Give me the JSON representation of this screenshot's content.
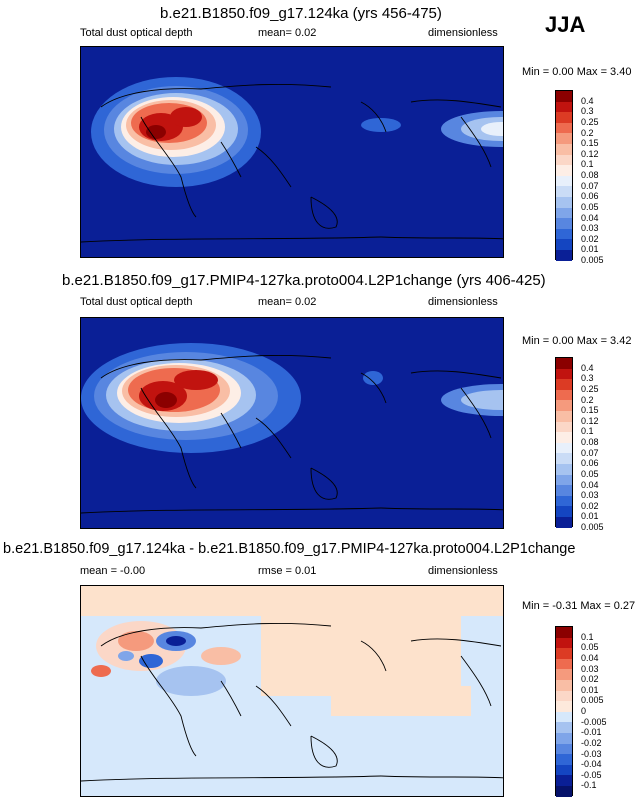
{
  "season": "JJA",
  "colors": {
    "ocean_dark": "#0a1f96",
    "diff_bg": "#d6e8fb",
    "diff_pos": "#fde2cc"
  },
  "panels": [
    {
      "title": "b.e21.B1850.f09_g17.124ka (yrs 456-475)",
      "left_label": "Total dust optical depth",
      "mid_label": "mean=  0.02",
      "right_label": "dimensionless",
      "minmax": "Min =  0.00 Max =  3.40"
    },
    {
      "title": "b.e21.B1850.f09_g17.PMIP4-127ka.proto004.L2P1change (yrs 406-425)",
      "left_label": "Total dust optical depth",
      "mid_label": "mean=  0.02",
      "right_label": "dimensionless",
      "minmax": "Min =  0.00 Max =  3.42"
    },
    {
      "title": "b.e21.B1850.f09_g17.124ka - b.e21.B1850.f09_g17.PMIP4-127ka.proto004.L2P1change",
      "left_label": "mean =  -0.00",
      "mid_label": "rmse =  0.01",
      "right_label": "dimensionless",
      "minmax": "Min = -0.31 Max =  0.27"
    }
  ],
  "chart_data": [
    {
      "type": "heatmap",
      "title": "b.e21.B1850.f09_g17.124ka (yrs 456-475)",
      "variable": "Total dust optical depth",
      "units": "dimensionless",
      "mean": 0.02,
      "min": 0.0,
      "max": 3.4,
      "colorbar_levels": [
        "0.4",
        "0.3",
        "0.25",
        "0.2",
        "0.15",
        "0.12",
        "0.1",
        "0.08",
        "0.07",
        "0.06",
        "0.05",
        "0.04",
        "0.03",
        "0.02",
        "0.01",
        "0.005"
      ],
      "colorbar_colors": [
        "#8b0000",
        "#c1130f",
        "#dc3b24",
        "#ee6b4f",
        "#f59a7d",
        "#f9bea5",
        "#fbd7c7",
        "#fdeee6",
        "#e8f0fb",
        "#cadcf6",
        "#a6c3f0",
        "#7fa5e9",
        "#5886e0",
        "#2f66d6",
        "#1445c1",
        "#0a1f96"
      ]
    },
    {
      "type": "heatmap",
      "title": "b.e21.B1850.f09_g17.PMIP4-127ka.proto004.L2P1change (yrs 406-425)",
      "variable": "Total dust optical depth",
      "units": "dimensionless",
      "mean": 0.02,
      "min": 0.0,
      "max": 3.42,
      "colorbar_levels": [
        "0.4",
        "0.3",
        "0.25",
        "0.2",
        "0.15",
        "0.12",
        "0.1",
        "0.08",
        "0.07",
        "0.06",
        "0.05",
        "0.04",
        "0.03",
        "0.02",
        "0.01",
        "0.005"
      ],
      "colorbar_colors": [
        "#8b0000",
        "#c1130f",
        "#dc3b24",
        "#ee6b4f",
        "#f59a7d",
        "#f9bea5",
        "#fbd7c7",
        "#fdeee6",
        "#e8f0fb",
        "#cadcf6",
        "#a6c3f0",
        "#7fa5e9",
        "#5886e0",
        "#2f66d6",
        "#1445c1",
        "#0a1f96"
      ]
    },
    {
      "type": "heatmap",
      "title": "b.e21.B1850.f09_g17.124ka - b.e21.B1850.f09_g17.PMIP4-127ka.proto004.L2P1change",
      "units": "dimensionless",
      "mean": -0.0,
      "rmse": 0.01,
      "min": -0.31,
      "max": 0.27,
      "colorbar_levels": [
        "0.1",
        "0.05",
        "0.04",
        "0.03",
        "0.02",
        "0.01",
        "0.005",
        "0",
        "-0.005",
        "-0.01",
        "-0.02",
        "-0.03",
        "-0.04",
        "-0.05",
        "-0.1"
      ],
      "colorbar_colors": [
        "#8b0000",
        "#c1130f",
        "#dc3b24",
        "#ee6b4f",
        "#f59a7d",
        "#f9bea5",
        "#fbd7c7",
        "#fde9dc",
        "#d6e8fb",
        "#a6c3f0",
        "#7fa5e9",
        "#5886e0",
        "#2f66d6",
        "#1445c1",
        "#0a1f96",
        "#06126a"
      ]
    }
  ]
}
